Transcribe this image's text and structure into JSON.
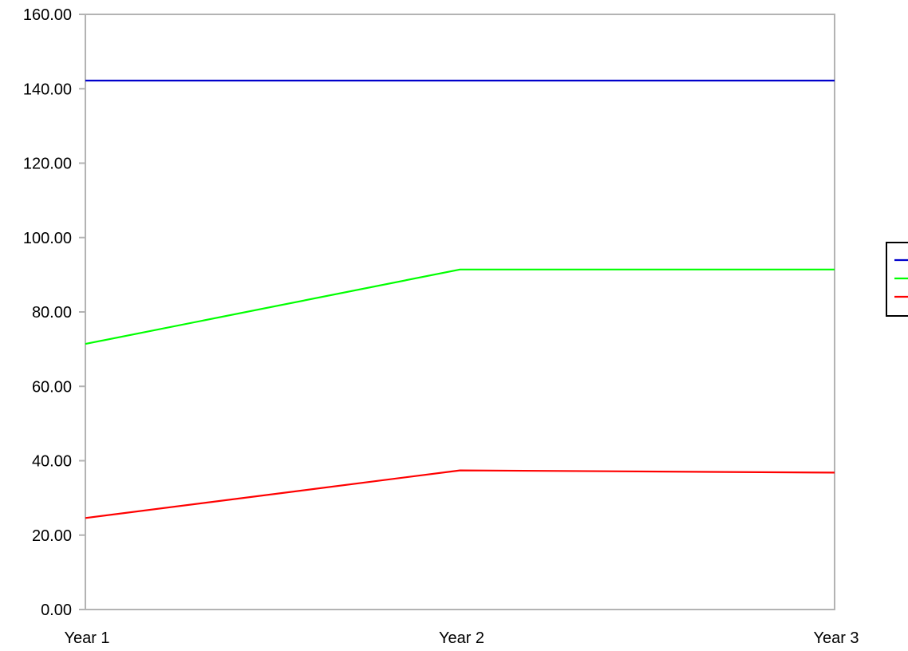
{
  "chart_data": {
    "type": "line",
    "title": "",
    "xlabel": "",
    "ylabel": "",
    "categories": [
      "Year 1",
      "Year 2",
      "Year 3"
    ],
    "ylim": [
      0,
      160
    ],
    "yticks": [
      "0.00",
      "20.00",
      "40.00",
      "60.00",
      "80.00",
      "100.00",
      "120.00",
      "140.00",
      "160.00"
    ],
    "grid": false,
    "legend": {
      "placement": "right",
      "entries_labeled": false
    },
    "series": [
      {
        "values": [
          142.2,
          142.2,
          142.2
        ],
        "color": "#0000cc"
      },
      {
        "values": [
          71.4,
          91.4,
          91.4
        ],
        "color": "#00ff00"
      },
      {
        "values": [
          24.6,
          37.4,
          36.8
        ],
        "color": "#ff0000"
      }
    ],
    "colors": {
      "frame": "#b3b3b3",
      "axis": "#b3b3b3",
      "legend_border": "#000000"
    }
  }
}
